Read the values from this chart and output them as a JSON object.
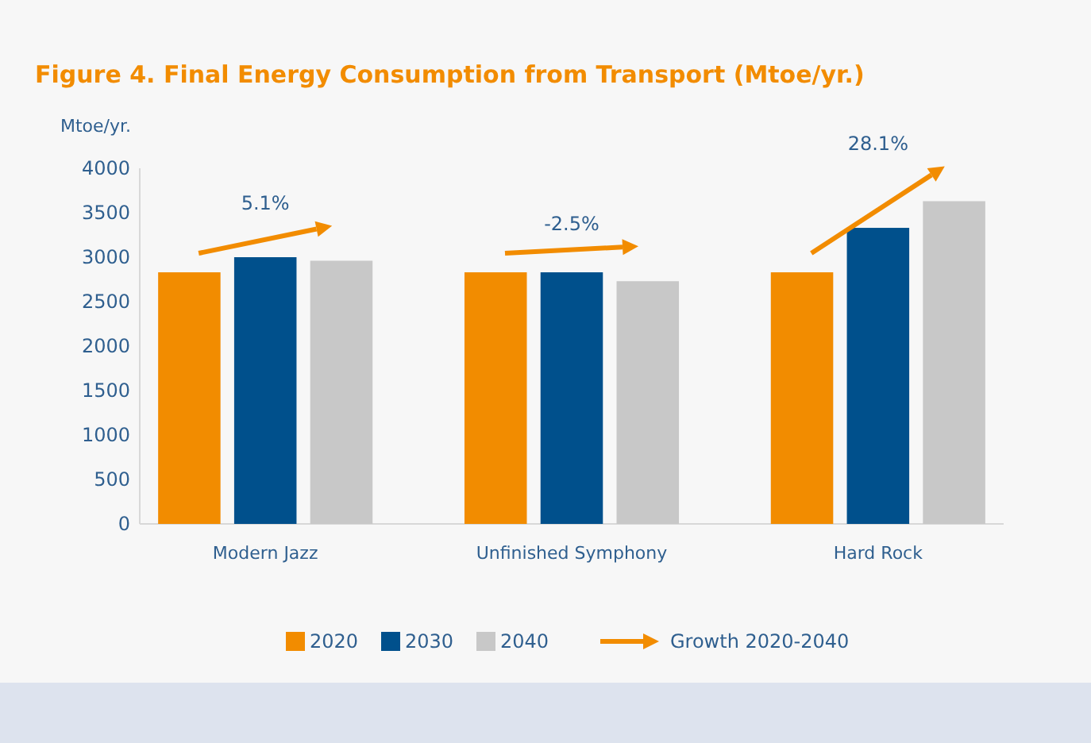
{
  "chart_data": {
    "type": "bar",
    "title": "Figure 4. Final Energy Consumption from Transport (Mtoe/yr.)",
    "ylabel": "Mtoe/yr.",
    "categories": [
      "Modern Jazz",
      "Unfinished Symphony",
      "Hard Rock"
    ],
    "series": [
      {
        "name": "2020",
        "color": "#f28c00",
        "values": [
          2830,
          2830,
          2830
        ]
      },
      {
        "name": "2030",
        "color": "#00508c",
        "values": [
          3000,
          2830,
          3330
        ]
      },
      {
        "name": "2040",
        "color": "#c8c8c8",
        "values": [
          2960,
          2730,
          3630
        ]
      }
    ],
    "ylim": [
      0,
      4000
    ],
    "yticks": [
      0,
      500,
      1000,
      1500,
      2000,
      2500,
      3000,
      3500,
      4000
    ],
    "grid": false,
    "legend": "bottom",
    "annotations": [
      "5.1%",
      "-2.5%",
      "28.1%",
      "Growth 2020-2040"
    ]
  }
}
